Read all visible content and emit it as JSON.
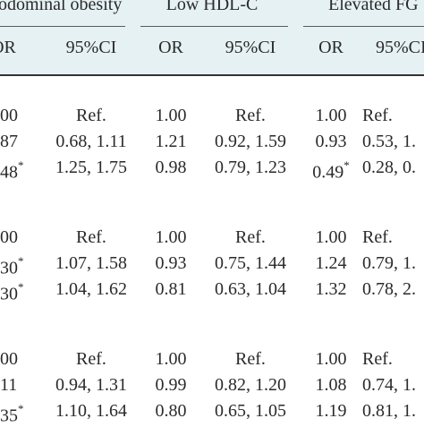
{
  "table": {
    "groups": [
      {
        "label": "odominal obesity"
      },
      {
        "label": "Low HDL-C"
      },
      {
        "label": "Elevated FG"
      }
    ],
    "subheaders": [
      {
        "or": "OR",
        "ci": "95%CI"
      },
      {
        "or": "OR",
        "ci": "95%CI"
      },
      {
        "or": "OR",
        "ci": "95%CI"
      }
    ],
    "rows": [
      {
        "c1_or": "00",
        "c1_star": "",
        "c1_ci": "Ref.",
        "c2_or": "1.00",
        "c2_ci": "Ref.",
        "c3_or": "1.00",
        "c3_star": "",
        "c3_ci": "Ref."
      },
      {
        "c1_or": "87",
        "c1_star": "",
        "c1_ci": "0.68, 1.11",
        "c2_or": "1.21",
        "c2_ci": "0.92, 1.59",
        "c3_or": "0.93",
        "c3_star": "",
        "c3_ci": "0.53, 1."
      },
      {
        "c1_or": "48",
        "c1_star": "*",
        "c1_ci": "1.25, 1.75",
        "c2_or": "0.98",
        "c2_ci": "0.79, 1.23",
        "c3_or": "0.49",
        "c3_star": "*",
        "c3_ci": "0.28, 0."
      },
      {
        "c1_or": "00",
        "c1_star": "",
        "c1_ci": "Ref.",
        "c2_or": "1.00",
        "c2_ci": "Ref.",
        "c3_or": "1.00",
        "c3_star": "",
        "c3_ci": "Ref."
      },
      {
        "c1_or": "30",
        "c1_star": "*",
        "c1_ci": "1.07, 1.58",
        "c2_or": "0.93",
        "c2_ci": "0.75, 1.44",
        "c3_or": "1.24",
        "c3_star": "",
        "c3_ci": "0.79, 1."
      },
      {
        "c1_or": "30",
        "c1_star": "*",
        "c1_ci": "1.04, 1.62",
        "c2_or": "0.81",
        "c2_ci": "0.63, 1.04",
        "c3_or": "1.32",
        "c3_star": "",
        "c3_ci": "0.78, 2."
      },
      {
        "c1_or": "00",
        "c1_star": "",
        "c1_ci": "Ref.",
        "c2_or": "1.00",
        "c2_ci": "Ref.",
        "c3_or": "1.00",
        "c3_star": "",
        "c3_ci": "Ref."
      },
      {
        "c1_or": "11",
        "c1_star": "",
        "c1_ci": "0.94, 1.31",
        "c2_or": "0.99",
        "c2_ci": "0.82, 1.20",
        "c3_or": "1.08",
        "c3_star": "",
        "c3_ci": "0.74, 1."
      },
      {
        "c1_or": "35",
        "c1_star": "*",
        "c1_ci": "1.10, 1.64",
        "c2_or": "0.80",
        "c2_ci": "0.65, 1.05",
        "c3_or": "1.19",
        "c3_star": "",
        "c3_ci": "0.81, 1."
      }
    ]
  }
}
